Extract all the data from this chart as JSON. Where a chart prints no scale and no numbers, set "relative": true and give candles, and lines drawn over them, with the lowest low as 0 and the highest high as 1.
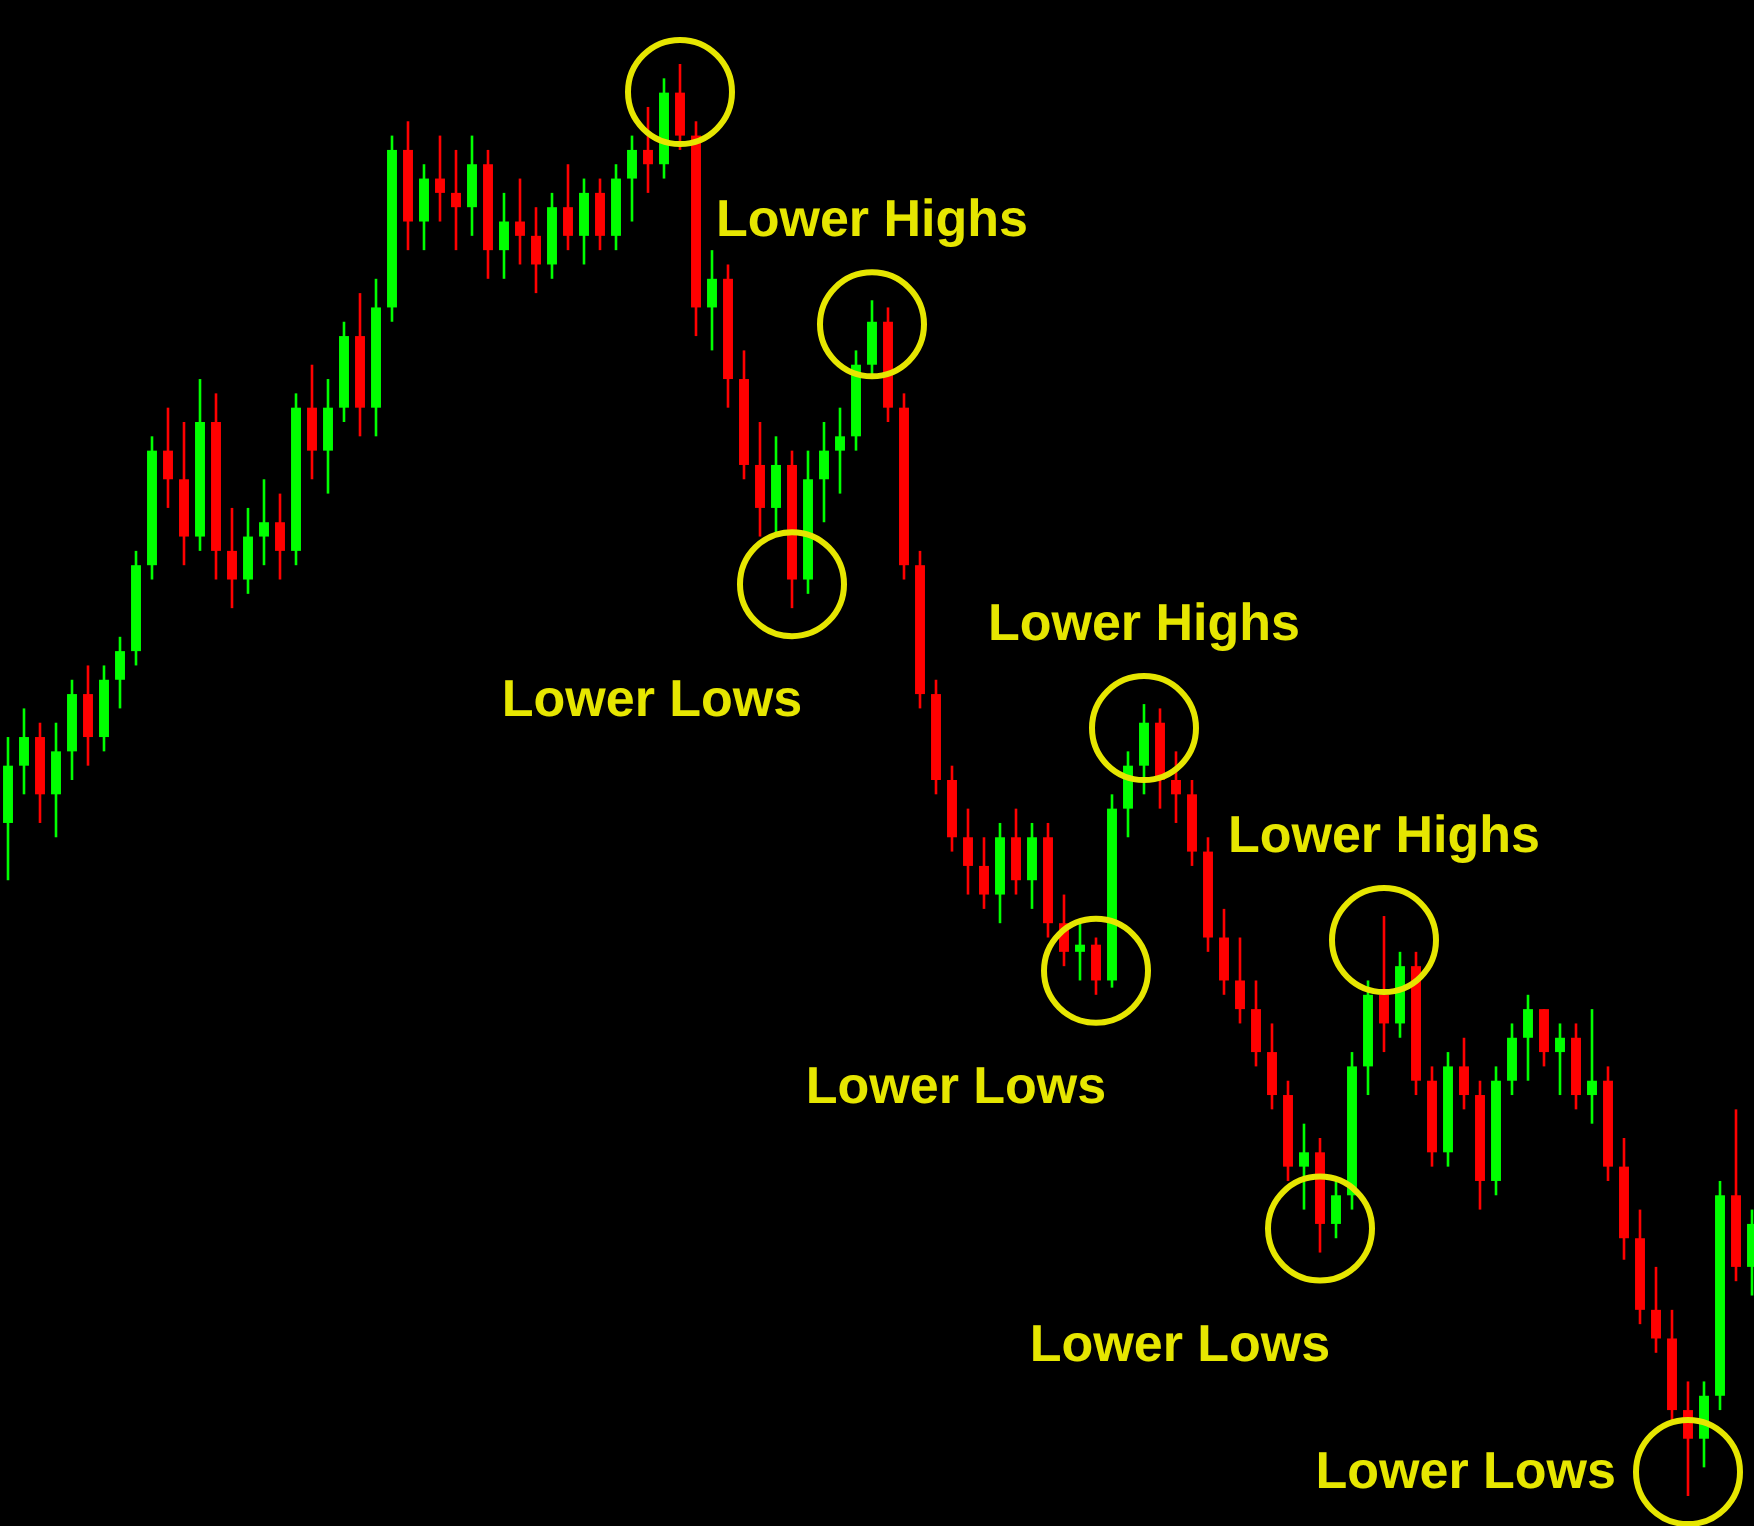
{
  "chart_data": {
    "type": "candlestick",
    "relative": true,
    "categories": [
      null,
      null,
      null,
      null,
      null,
      null,
      null,
      null,
      null,
      null,
      null,
      null,
      null,
      null,
      null,
      null,
      null,
      null,
      null,
      null,
      null,
      null,
      null,
      null,
      null,
      null,
      null,
      null,
      null,
      null,
      null,
      null,
      null,
      null,
      null,
      null,
      null,
      null,
      null,
      null,
      null,
      null,
      null,
      null,
      null,
      null,
      null,
      null,
      null,
      null,
      null,
      null,
      null,
      null,
      null,
      null,
      null,
      null,
      null,
      null,
      null,
      null,
      null,
      null,
      null,
      null,
      null,
      null,
      null,
      null,
      null,
      null,
      null,
      null,
      null,
      null,
      null,
      null,
      null,
      null,
      null,
      null,
      null,
      null,
      null,
      null,
      null,
      null,
      null,
      null,
      null,
      null,
      null,
      null,
      null,
      null,
      null,
      null,
      null,
      null,
      null,
      null,
      null,
      null,
      null,
      null,
      null,
      null,
      null,
      null
    ],
    "ohlc": [
      [
        0.47,
        0.53,
        0.43,
        0.51
      ],
      [
        0.51,
        0.55,
        0.49,
        0.53
      ],
      [
        0.53,
        0.54,
        0.47,
        0.49
      ],
      [
        0.49,
        0.54,
        0.46,
        0.52
      ],
      [
        0.52,
        0.57,
        0.5,
        0.56
      ],
      [
        0.56,
        0.58,
        0.51,
        0.53
      ],
      [
        0.53,
        0.58,
        0.52,
        0.57
      ],
      [
        0.57,
        0.6,
        0.55,
        0.59
      ],
      [
        0.59,
        0.66,
        0.58,
        0.65
      ],
      [
        0.65,
        0.74,
        0.64,
        0.73
      ],
      [
        0.73,
        0.76,
        0.69,
        0.71
      ],
      [
        0.71,
        0.75,
        0.65,
        0.67
      ],
      [
        0.67,
        0.78,
        0.66,
        0.75
      ],
      [
        0.75,
        0.77,
        0.64,
        0.66
      ],
      [
        0.66,
        0.69,
        0.62,
        0.64
      ],
      [
        0.64,
        0.69,
        0.63,
        0.67
      ],
      [
        0.67,
        0.71,
        0.65,
        0.68
      ],
      [
        0.68,
        0.7,
        0.64,
        0.66
      ],
      [
        0.66,
        0.77,
        0.65,
        0.76
      ],
      [
        0.76,
        0.79,
        0.71,
        0.73
      ],
      [
        0.73,
        0.78,
        0.7,
        0.76
      ],
      [
        0.76,
        0.82,
        0.75,
        0.81
      ],
      [
        0.81,
        0.84,
        0.74,
        0.76
      ],
      [
        0.76,
        0.85,
        0.74,
        0.83
      ],
      [
        0.83,
        0.95,
        0.82,
        0.94
      ],
      [
        0.94,
        0.96,
        0.87,
        0.89
      ],
      [
        0.89,
        0.93,
        0.87,
        0.92
      ],
      [
        0.92,
        0.95,
        0.89,
        0.91
      ],
      [
        0.91,
        0.94,
        0.87,
        0.9
      ],
      [
        0.9,
        0.95,
        0.88,
        0.93
      ],
      [
        0.93,
        0.94,
        0.85,
        0.87
      ],
      [
        0.87,
        0.91,
        0.85,
        0.89
      ],
      [
        0.89,
        0.92,
        0.86,
        0.88
      ],
      [
        0.88,
        0.9,
        0.84,
        0.86
      ],
      [
        0.86,
        0.91,
        0.85,
        0.9
      ],
      [
        0.9,
        0.93,
        0.87,
        0.88
      ],
      [
        0.88,
        0.92,
        0.86,
        0.91
      ],
      [
        0.91,
        0.92,
        0.87,
        0.88
      ],
      [
        0.88,
        0.93,
        0.87,
        0.92
      ],
      [
        0.92,
        0.95,
        0.89,
        0.94
      ],
      [
        0.94,
        0.97,
        0.91,
        0.93
      ],
      [
        0.93,
        0.99,
        0.92,
        0.98
      ],
      [
        0.98,
        1.0,
        0.94,
        0.95
      ],
      [
        0.95,
        0.96,
        0.81,
        0.83
      ],
      [
        0.83,
        0.87,
        0.8,
        0.85
      ],
      [
        0.85,
        0.86,
        0.76,
        0.78
      ],
      [
        0.78,
        0.8,
        0.71,
        0.72
      ],
      [
        0.72,
        0.75,
        0.67,
        0.69
      ],
      [
        0.69,
        0.74,
        0.67,
        0.72
      ],
      [
        0.72,
        0.73,
        0.62,
        0.64
      ],
      [
        0.64,
        0.73,
        0.63,
        0.71
      ],
      [
        0.71,
        0.75,
        0.68,
        0.73
      ],
      [
        0.73,
        0.76,
        0.7,
        0.74
      ],
      [
        0.74,
        0.8,
        0.73,
        0.79
      ],
      [
        0.79,
        0.835,
        0.78,
        0.82
      ],
      [
        0.82,
        0.83,
        0.75,
        0.76
      ],
      [
        0.76,
        0.77,
        0.64,
        0.65
      ],
      [
        0.65,
        0.66,
        0.55,
        0.56
      ],
      [
        0.56,
        0.57,
        0.49,
        0.5
      ],
      [
        0.5,
        0.51,
        0.45,
        0.46
      ],
      [
        0.46,
        0.48,
        0.42,
        0.44
      ],
      [
        0.44,
        0.46,
        0.41,
        0.42
      ],
      [
        0.42,
        0.47,
        0.4,
        0.46
      ],
      [
        0.46,
        0.48,
        0.42,
        0.43
      ],
      [
        0.43,
        0.47,
        0.41,
        0.46
      ],
      [
        0.46,
        0.47,
        0.39,
        0.4
      ],
      [
        0.4,
        0.42,
        0.37,
        0.38
      ],
      [
        0.38,
        0.4,
        0.36,
        0.385
      ],
      [
        0.385,
        0.39,
        0.35,
        0.36
      ],
      [
        0.36,
        0.49,
        0.355,
        0.48
      ],
      [
        0.48,
        0.52,
        0.46,
        0.51
      ],
      [
        0.51,
        0.553,
        0.49,
        0.54
      ],
      [
        0.54,
        0.55,
        0.48,
        0.5
      ],
      [
        0.5,
        0.52,
        0.47,
        0.49
      ],
      [
        0.49,
        0.5,
        0.44,
        0.45
      ],
      [
        0.45,
        0.46,
        0.38,
        0.39
      ],
      [
        0.39,
        0.41,
        0.35,
        0.36
      ],
      [
        0.36,
        0.39,
        0.33,
        0.34
      ],
      [
        0.34,
        0.36,
        0.3,
        0.31
      ],
      [
        0.31,
        0.33,
        0.27,
        0.28
      ],
      [
        0.28,
        0.29,
        0.22,
        0.23
      ],
      [
        0.23,
        0.26,
        0.2,
        0.24
      ],
      [
        0.24,
        0.25,
        0.17,
        0.19
      ],
      [
        0.19,
        0.22,
        0.18,
        0.21
      ],
      [
        0.21,
        0.31,
        0.2,
        0.3
      ],
      [
        0.3,
        0.36,
        0.28,
        0.35
      ],
      [
        0.35,
        0.405,
        0.31,
        0.33
      ],
      [
        0.33,
        0.38,
        0.32,
        0.37
      ],
      [
        0.37,
        0.38,
        0.28,
        0.29
      ],
      [
        0.29,
        0.3,
        0.23,
        0.24
      ],
      [
        0.24,
        0.31,
        0.23,
        0.3
      ],
      [
        0.3,
        0.32,
        0.27,
        0.28
      ],
      [
        0.28,
        0.29,
        0.2,
        0.22
      ],
      [
        0.22,
        0.3,
        0.21,
        0.29
      ],
      [
        0.29,
        0.33,
        0.28,
        0.32
      ],
      [
        0.32,
        0.35,
        0.29,
        0.34
      ],
      [
        0.34,
        0.34,
        0.3,
        0.31
      ],
      [
        0.31,
        0.33,
        0.28,
        0.32
      ],
      [
        0.32,
        0.33,
        0.27,
        0.28
      ],
      [
        0.28,
        0.34,
        0.26,
        0.29
      ],
      [
        0.29,
        0.3,
        0.22,
        0.23
      ],
      [
        0.23,
        0.25,
        0.165,
        0.18
      ],
      [
        0.18,
        0.2,
        0.12,
        0.13
      ],
      [
        0.13,
        0.16,
        0.1,
        0.11
      ],
      [
        0.11,
        0.13,
        0.05,
        0.06
      ],
      [
        0.06,
        0.08,
        0.0,
        0.04
      ],
      [
        0.04,
        0.08,
        0.02,
        0.07
      ],
      [
        0.07,
        0.22,
        0.06,
        0.21
      ],
      [
        0.21,
        0.27,
        0.15,
        0.16
      ],
      [
        0.16,
        0.2,
        0.14,
        0.19
      ]
    ],
    "colors": [
      "#00ff00",
      "#00ff00",
      "#ff0000",
      "#00ff00",
      "#00ff00",
      "#ff0000",
      "#00ff00",
      "#00ff00",
      "#00ff00",
      "#00ff00",
      "#ff0000",
      "#ff0000",
      "#00ff00",
      "#ff0000",
      "#ff0000",
      "#00ff00",
      "#00ff00",
      "#ff0000",
      "#00ff00",
      "#ff0000",
      "#00ff00",
      "#00ff00",
      "#ff0000",
      "#00ff00",
      "#00ff00",
      "#ff0000",
      "#00ff00",
      "#ff0000",
      "#ff0000",
      "#00ff00",
      "#ff0000",
      "#00ff00",
      "#ff0000",
      "#ff0000",
      "#00ff00",
      "#ff0000",
      "#00ff00",
      "#ff0000",
      "#00ff00",
      "#00ff00",
      "#ff0000",
      "#00ff00",
      "#ff0000",
      "#ff0000",
      "#00ff00",
      "#ff0000",
      "#ff0000",
      "#ff0000",
      "#00ff00",
      "#ff0000",
      "#00ff00",
      "#00ff00",
      "#00ff00",
      "#00ff00",
      "#00ff00",
      "#ff0000",
      "#ff0000",
      "#ff0000",
      "#ff0000",
      "#ff0000",
      "#ff0000",
      "#ff0000",
      "#00ff00",
      "#ff0000",
      "#00ff00",
      "#ff0000",
      "#ff0000",
      "#00ff00",
      "#ff0000",
      "#00ff00",
      "#00ff00",
      "#00ff00",
      "#ff0000",
      "#ff0000",
      "#ff0000",
      "#ff0000",
      "#ff0000",
      "#ff0000",
      "#ff0000",
      "#ff0000",
      "#ff0000",
      "#00ff00",
      "#ff0000",
      "#00ff00",
      "#00ff00",
      "#00ff00",
      "#ff0000",
      "#00ff00",
      "#ff0000",
      "#ff0000",
      "#00ff00",
      "#ff0000",
      "#ff0000",
      "#00ff00",
      "#00ff00",
      "#00ff00",
      "#ff0000",
      "#00ff00",
      "#ff0000",
      "#00ff00",
      "#ff0000",
      "#ff0000",
      "#ff0000",
      "#ff0000",
      "#ff0000",
      "#ff0000",
      "#00ff00",
      "#00ff00",
      "#ff0000",
      "#00ff00"
    ],
    "annotations": [
      {
        "text": "Lower Highs",
        "y": 0.835
      },
      {
        "text": "Lower Highs",
        "y": 0.553
      },
      {
        "text": "Lower Highs",
        "y": 0.405
      },
      "Lower Lows",
      "Lower Lows",
      "Lower Lows",
      "Lower Lows"
    ]
  }
}
